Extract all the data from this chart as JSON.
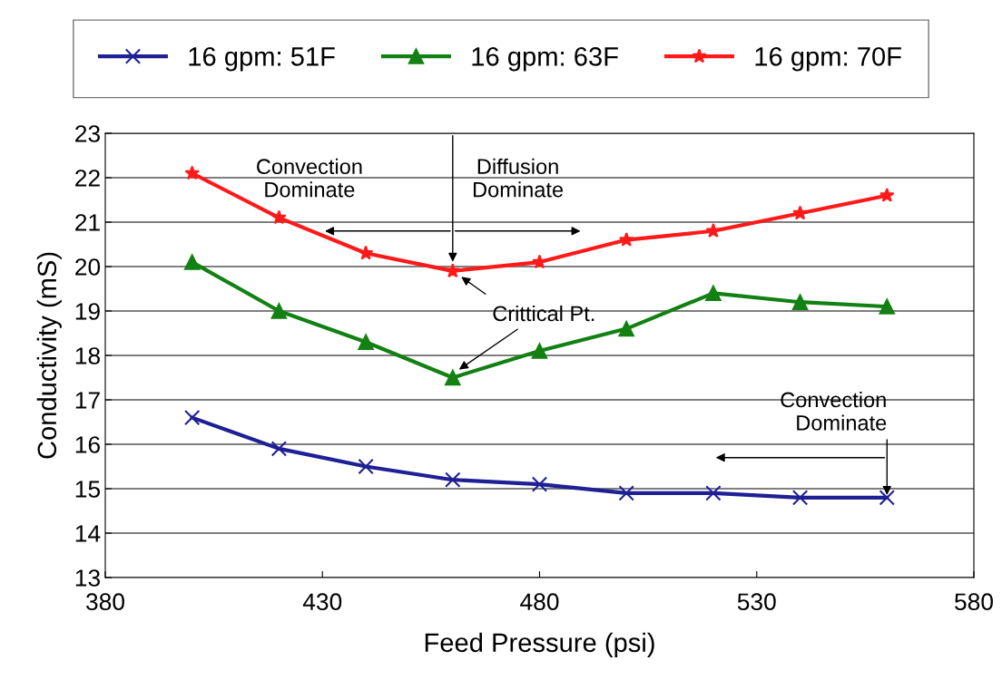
{
  "chart_data": {
    "type": "line",
    "xlabel": "Feed Pressure (psi)",
    "ylabel": "Conductivity (mS)",
    "x": [
      400,
      420,
      440,
      460,
      480,
      500,
      520,
      540,
      560
    ],
    "series": [
      {
        "name": "16 gpm: 51F",
        "color": "#1f1f96",
        "marker": "cross",
        "values": [
          16.6,
          15.9,
          15.5,
          15.2,
          15.1,
          14.9,
          14.9,
          14.8,
          14.8
        ]
      },
      {
        "name": "16 gpm: 63F",
        "color": "#138013",
        "marker": "triangle",
        "values": [
          20.1,
          19.0,
          18.3,
          17.5,
          18.1,
          18.6,
          19.4,
          19.2,
          19.1
        ]
      },
      {
        "name": "16 gpm: 70F",
        "color": "#ff1a1a",
        "marker": "star",
        "values": [
          22.1,
          21.1,
          20.3,
          19.9,
          20.1,
          20.6,
          20.8,
          21.2,
          21.6
        ]
      }
    ],
    "xlim": [
      380,
      580
    ],
    "xticks": [
      380,
      430,
      480,
      530,
      580
    ],
    "ylim": [
      13,
      23
    ],
    "yticks": [
      13,
      14,
      15,
      16,
      17,
      18,
      19,
      20,
      21,
      22,
      23
    ],
    "grid": "y",
    "legend": "top",
    "line_style": "solid",
    "annotations": [
      "Convection\nDominate",
      "Diffusion\nDominate",
      "Crittical Pt.",
      {
        "text": "Convection\nDominate",
        "x": 560,
        "y": 14.8
      }
    ]
  }
}
